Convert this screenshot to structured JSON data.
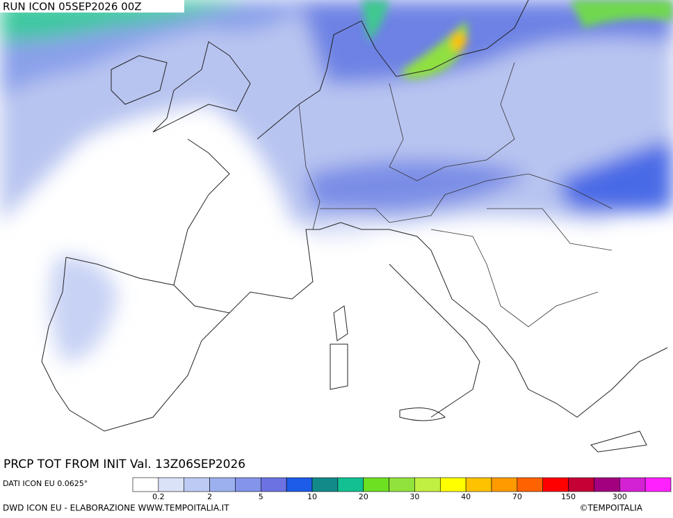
{
  "header": {
    "run": "RUN ICON 05SEP2026 00Z"
  },
  "map": {
    "title": "PRCP TOT FROM INIT Val. 13Z06SEP2026"
  },
  "legend": {
    "source": "DATI ICON EU 0.0625°",
    "colors": [
      "#ffffff",
      "#dae2f8",
      "#bccaf4",
      "#9cb0f0",
      "#8494ea",
      "#6c72e2",
      "#1c5ce8",
      "#128a8a",
      "#12c092",
      "#6ee022",
      "#92e23e",
      "#c2f042",
      "#ffff00",
      "#ffc200",
      "#ff9a00",
      "#ff6200",
      "#ff0000",
      "#c40034",
      "#a2007e",
      "#d222d2",
      "#ff22ff"
    ],
    "labels": [
      "0.2",
      "2",
      "5",
      "10",
      "20",
      "30",
      "40",
      "70",
      "150",
      "300"
    ]
  },
  "footer": {
    "credit": "DWD ICON EU - ELABORAZIONE WWW.TEMPOITALIA.IT",
    "copyright": "©TEMPOITALIA"
  }
}
